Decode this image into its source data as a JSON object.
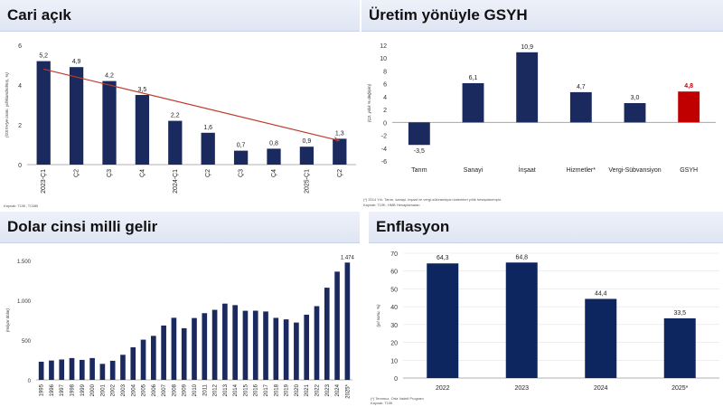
{
  "panels": {
    "cari": {
      "title": "Cari açık",
      "source": "Kaynak: TÜİK, TCMB",
      "chart_data": {
        "type": "bar",
        "categories": [
          "2023-Ç1",
          "Ç2",
          "Ç3",
          "Ç4",
          "2024-Ç1",
          "Ç2",
          "Ç3",
          "Ç4",
          "2025-Ç1",
          "Ç2"
        ],
        "values": [
          5.2,
          4.9,
          4.2,
          3.5,
          2.2,
          1.6,
          0.7,
          0.8,
          0.9,
          1.3
        ],
        "value_labels": [
          "5,2",
          "4,9",
          "4,2",
          "3,5",
          "2,2",
          "1,6",
          "0,7",
          "0,8",
          "0,9",
          "1,3"
        ],
        "ylabel": "(GSYH'ye oranı, yıllıklandırılmış, %)",
        "yticks": [
          0,
          2,
          4,
          6
        ],
        "ylim": [
          0,
          6
        ],
        "trend_line": {
          "from": 4.8,
          "to": 1.2
        },
        "bar_color": "#1b2a5e",
        "trend_color": "#c0392b"
      }
    },
    "gsyh": {
      "title": "Üretim yönüyle GSYH",
      "notes": [
        "(*) 2014 Yılı: Tarım, sanayi, inşaat ve vergi-sübvansiyon kalemleri yıllık hesaplanmıştır.",
        "Kaynak: TÜİK, HMB Hesaplamaları"
      ],
      "chart_data": {
        "type": "bar",
        "categories": [
          "Tarım",
          "Sanayi",
          "İnşaat",
          "Hizmetler*",
          "Vergi-Sübvansiyon",
          "GSYH"
        ],
        "values": [
          -3.5,
          6.1,
          10.9,
          4.7,
          3.0,
          4.8
        ],
        "value_labels": [
          "-3,5",
          "6,1",
          "10,9",
          "4,7",
          "3,0",
          "4,8"
        ],
        "ylabel": "(Ç2, yıllık % değişim)",
        "yticks": [
          -6,
          -4,
          -2,
          0,
          2,
          4,
          6,
          8,
          10,
          12
        ],
        "ylim": [
          -6,
          12
        ],
        "bar_color": "#1b2a5e",
        "highlight_color": "#c00000",
        "highlight_index": 5
      }
    },
    "dolar": {
      "title": "Dolar cinsi milli gelir",
      "chart_data": {
        "type": "bar",
        "categories": [
          "1995",
          "1996",
          "1997",
          "1998",
          "1999",
          "2000",
          "2001",
          "2002",
          "2003",
          "2004",
          "2005",
          "2006",
          "2007",
          "2008",
          "2009",
          "2010",
          "2011",
          "2012",
          "2013",
          "2014",
          "2015",
          "2016",
          "2017",
          "2018",
          "2019",
          "2020",
          "2021",
          "2022",
          "2023",
          "2024",
          "2025*"
        ],
        "values": [
          228,
          243,
          256,
          274,
          251,
          274,
          201,
          240,
          315,
          409,
          505,
          553,
          683,
          780,
          649,
          777,
          838,
          880,
          958,
          939,
          868,
          869,
          859,
          779,
          760,
          720,
          819,
          926,
          1158,
          1360,
          1474
        ],
        "top_label": "1.474",
        "ylabel": "(milyar dolar)",
        "yticks": [
          0,
          500,
          1000,
          1500
        ],
        "ytick_labels": [
          "0",
          "500",
          "1.000",
          "1.500"
        ],
        "ylim": [
          0,
          1500
        ],
        "bar_color": "#1b2a5e"
      }
    },
    "enf": {
      "title": "Enflasyon",
      "notes": [
        "(*) Temmuz, Orta Vadeli Program",
        "Kaynak: TÜİK"
      ],
      "chart_data": {
        "type": "bar",
        "categories": [
          "2022",
          "2023",
          "2024",
          "2025*"
        ],
        "values": [
          64.3,
          64.8,
          44.4,
          33.5
        ],
        "value_labels": [
          "64,3",
          "64,8",
          "44,4",
          "33,5"
        ],
        "ylabel": "(yıl sonu, %)",
        "yticks": [
          0,
          10,
          20,
          30,
          40,
          50,
          60,
          70
        ],
        "ylim": [
          0,
          70
        ],
        "bar_color": "#0d2660"
      }
    }
  }
}
